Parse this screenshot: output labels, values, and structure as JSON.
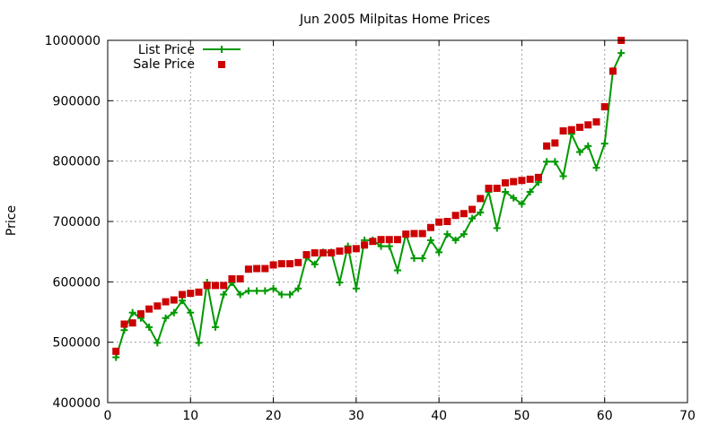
{
  "chart_data": {
    "type": "line",
    "title": "Jun 2005 Milpitas Home Prices",
    "xlabel": "",
    "ylabel": "Price",
    "xlim": [
      0,
      70
    ],
    "ylim": [
      400000,
      1000000
    ],
    "x_ticks": [
      0,
      10,
      20,
      30,
      40,
      50,
      60,
      70
    ],
    "x_tick_labels": [
      "0",
      "10",
      "20",
      "30",
      "40",
      "50",
      "60",
      "70"
    ],
    "y_ticks": [
      400000,
      500000,
      600000,
      700000,
      800000,
      900000,
      1000000
    ],
    "y_tick_labels": [
      "400000",
      "500000",
      "600000",
      "700000",
      "800000",
      "900000",
      "1000000"
    ],
    "grid": true,
    "legend_position": "top-left",
    "series": [
      {
        "name": "List Price",
        "type": "linespoints",
        "color": "#009900",
        "marker": "plus",
        "x": [
          1,
          2,
          3,
          4,
          5,
          6,
          7,
          8,
          9,
          10,
          11,
          12,
          13,
          14,
          15,
          16,
          17,
          18,
          19,
          20,
          21,
          22,
          23,
          24,
          25,
          26,
          27,
          28,
          29,
          30,
          31,
          32,
          33,
          34,
          35,
          36,
          37,
          38,
          39,
          40,
          41,
          42,
          43,
          44,
          45,
          46,
          47,
          48,
          49,
          50,
          51,
          52,
          53,
          54,
          55,
          56,
          57,
          58,
          59,
          60,
          61,
          62
        ],
        "y": [
          475000,
          520000,
          549000,
          540000,
          525000,
          499000,
          540000,
          549000,
          569000,
          549000,
          499000,
          599000,
          525000,
          579000,
          599000,
          579000,
          585000,
          585000,
          585000,
          589000,
          579000,
          579000,
          589000,
          640000,
          629000,
          649000,
          649000,
          599000,
          659000,
          589000,
          669000,
          669000,
          659000,
          659000,
          619000,
          679000,
          639000,
          639000,
          669000,
          649000,
          679000,
          669000,
          679000,
          705000,
          715000,
          749000,
          689000,
          749000,
          739000,
          729000,
          749000,
          765000,
          799000,
          799000,
          775000,
          845000,
          815000,
          825000,
          789000,
          829000,
          949000,
          979000
        ]
      },
      {
        "name": "Sale Price",
        "type": "points",
        "color": "#cc0000",
        "marker": "square",
        "x": [
          1,
          2,
          3,
          4,
          5,
          6,
          7,
          8,
          9,
          10,
          11,
          12,
          13,
          14,
          15,
          16,
          17,
          18,
          19,
          20,
          21,
          22,
          23,
          24,
          25,
          26,
          27,
          28,
          29,
          30,
          31,
          32,
          33,
          34,
          35,
          36,
          37,
          38,
          39,
          40,
          41,
          42,
          43,
          44,
          45,
          46,
          47,
          48,
          49,
          50,
          51,
          52,
          53,
          54,
          55,
          56,
          57,
          58,
          59,
          60,
          61,
          62
        ],
        "y": [
          485000,
          530000,
          532000,
          547000,
          555000,
          560000,
          567000,
          570000,
          579000,
          581000,
          583000,
          594000,
          594000,
          594000,
          605000,
          605000,
          621000,
          622000,
          622000,
          628000,
          630000,
          630000,
          632000,
          645000,
          648000,
          648000,
          648000,
          651000,
          653000,
          655000,
          661000,
          667000,
          670000,
          670000,
          670000,
          679000,
          680000,
          680000,
          690000,
          699000,
          700000,
          710000,
          713000,
          720000,
          738000,
          755000,
          755000,
          764000,
          766000,
          768000,
          770000,
          773000,
          825000,
          830000,
          850000,
          852000,
          856000,
          860000,
          865000,
          890000,
          949000,
          1000000
        ]
      }
    ]
  }
}
